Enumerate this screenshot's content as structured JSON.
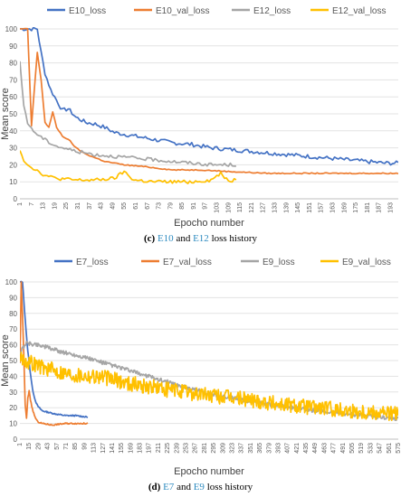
{
  "colors": {
    "E10_loss": "#4472c4",
    "E10_val_loss": "#ed7d31",
    "E12_loss": "#a5a5a5",
    "E12_val_loss": "#ffc000",
    "E7_loss": "#4472c4",
    "E7_val_loss": "#ed7d31",
    "E9_loss": "#a5a5a5",
    "E9_val_loss": "#ffc000",
    "ref": "#2e8bc0"
  },
  "captions": [
    {
      "label": "(c)",
      "ref1": "E10",
      "mid": " and ",
      "ref2": "E12",
      "tail": " loss history"
    },
    {
      "label": "(d)",
      "ref1": "E7",
      "mid": " and ",
      "ref2": "E9",
      "tail": " loss history"
    }
  ],
  "chart_data": [
    {
      "type": "line",
      "xlabel": "Epocho number",
      "ylabel": "Mean score",
      "ylim": [
        0,
        100
      ],
      "yticks": [
        0,
        10,
        20,
        30,
        40,
        50,
        60,
        70,
        80,
        90,
        100
      ],
      "xlim": [
        1,
        197
      ],
      "xtick_start": 1,
      "xtick_step": 6,
      "xtick_end": 193,
      "legend": "top",
      "grid": "horizontal",
      "series": [
        {
          "name": "E10_loss",
          "color": "#4472c4",
          "length": 197,
          "anchors": [
            [
              1,
              100
            ],
            [
              7,
              100
            ],
            [
              10,
              100
            ],
            [
              12,
              86
            ],
            [
              14,
              74
            ],
            [
              17,
              64
            ],
            [
              20,
              58
            ],
            [
              23,
              52
            ],
            [
              26,
              53
            ],
            [
              30,
              48
            ],
            [
              35,
              45
            ],
            [
              40,
              44
            ],
            [
              45,
              42
            ],
            [
              50,
              39
            ],
            [
              55,
              38
            ],
            [
              60,
              37
            ],
            [
              70,
              35
            ],
            [
              80,
              33
            ],
            [
              90,
              32
            ],
            [
              100,
              30
            ],
            [
              110,
              29
            ],
            [
              120,
              28
            ],
            [
              130,
              27
            ],
            [
              140,
              26
            ],
            [
              150,
              25
            ],
            [
              160,
              24
            ],
            [
              170,
              23
            ],
            [
              180,
              22
            ],
            [
              190,
              21
            ],
            [
              197,
              21
            ]
          ],
          "noise": 1.2
        },
        {
          "name": "E10_val_loss",
          "color": "#ed7d31",
          "length": 197,
          "anchors": [
            [
              1,
              100
            ],
            [
              5,
              100
            ],
            [
              7,
              43
            ],
            [
              9,
              72
            ],
            [
              10,
              86
            ],
            [
              12,
              70
            ],
            [
              14,
              45
            ],
            [
              16,
              42
            ],
            [
              18,
              51
            ],
            [
              20,
              42
            ],
            [
              23,
              37
            ],
            [
              27,
              34
            ],
            [
              30,
              30
            ],
            [
              34,
              27
            ],
            [
              38,
              25
            ],
            [
              45,
              22
            ],
            [
              55,
              20
            ],
            [
              65,
              19
            ],
            [
              80,
              17
            ],
            [
              95,
              17
            ],
            [
              110,
              16
            ],
            [
              130,
              15
            ],
            [
              150,
              15
            ],
            [
              175,
              15
            ],
            [
              197,
              15
            ]
          ],
          "noise": 0.3
        },
        {
          "name": "E12_loss",
          "color": "#a5a5a5",
          "length": 113,
          "anchors": [
            [
              1,
              80
            ],
            [
              3,
              55
            ],
            [
              5,
              45
            ],
            [
              7,
              41
            ],
            [
              10,
              38
            ],
            [
              15,
              34
            ],
            [
              20,
              31
            ],
            [
              30,
              28
            ],
            [
              40,
              26
            ],
            [
              50,
              25
            ],
            [
              60,
              24
            ],
            [
              70,
              23
            ],
            [
              80,
              22
            ],
            [
              90,
              21
            ],
            [
              100,
              20
            ],
            [
              113,
              20
            ]
          ],
          "noise": 1.0
        },
        {
          "name": "E12_val_loss",
          "color": "#ffc000",
          "length": 113,
          "anchors": [
            [
              1,
              29
            ],
            [
              3,
              23
            ],
            [
              5,
              20
            ],
            [
              8,
              18
            ],
            [
              12,
              15
            ],
            [
              16,
              13
            ],
            [
              20,
              12
            ],
            [
              30,
              11
            ],
            [
              40,
              11
            ],
            [
              50,
              12
            ],
            [
              55,
              16
            ],
            [
              60,
              11
            ],
            [
              70,
              10
            ],
            [
              80,
              10
            ],
            [
              90,
              10
            ],
            [
              100,
              11
            ],
            [
              105,
              15
            ],
            [
              110,
              10
            ],
            [
              113,
              12
            ]
          ],
          "noise": 1.0
        }
      ]
    },
    {
      "type": "line",
      "xlabel": "Epocho number",
      "ylabel": "Mean score",
      "ylim": [
        0,
        100
      ],
      "yticks": [
        0,
        10,
        20,
        30,
        40,
        50,
        60,
        70,
        80,
        90,
        100
      ],
      "xlim": [
        1,
        575
      ],
      "xtick_start": 1,
      "xtick_step": 14,
      "xtick_end": 575,
      "legend": "top",
      "grid": "horizontal",
      "series": [
        {
          "name": "E7_loss",
          "color": "#4472c4",
          "length": 104,
          "anchors": [
            [
              1,
              100
            ],
            [
              5,
              100
            ],
            [
              8,
              82
            ],
            [
              12,
              60
            ],
            [
              16,
              45
            ],
            [
              20,
              32
            ],
            [
              24,
              25
            ],
            [
              28,
              21
            ],
            [
              35,
              18
            ],
            [
              45,
              17
            ],
            [
              55,
              16
            ],
            [
              70,
              15
            ],
            [
              85,
              15
            ],
            [
              104,
              14
            ]
          ],
          "noise": 0.4
        },
        {
          "name": "E7_val_loss",
          "color": "#ed7d31",
          "length": 104,
          "anchors": [
            [
              1,
              48
            ],
            [
              3,
              100
            ],
            [
              5,
              78
            ],
            [
              7,
              52
            ],
            [
              9,
              22
            ],
            [
              11,
              13
            ],
            [
              13,
              26
            ],
            [
              15,
              31
            ],
            [
              17,
              25
            ],
            [
              20,
              19
            ],
            [
              24,
              14
            ],
            [
              28,
              11
            ],
            [
              35,
              10
            ],
            [
              50,
              9
            ],
            [
              70,
              10
            ],
            [
              104,
              10
            ]
          ],
          "noise": 0.4
        },
        {
          "name": "E9_loss",
          "color": "#a5a5a5",
          "length": 575,
          "anchors": [
            [
              1,
              55
            ],
            [
              10,
              61
            ],
            [
              30,
              60
            ],
            [
              60,
              56
            ],
            [
              100,
              52
            ],
            [
              140,
              47
            ],
            [
              180,
              42
            ],
            [
              220,
              37
            ],
            [
              260,
              32
            ],
            [
              300,
              28
            ],
            [
              350,
              24
            ],
            [
              400,
              21
            ],
            [
              450,
              18
            ],
            [
              500,
              16
            ],
            [
              550,
              14
            ],
            [
              575,
              13
            ]
          ],
          "noise": 1.3
        },
        {
          "name": "E9_val_loss",
          "color": "#ffc000",
          "length": 575,
          "anchors": [
            [
              1,
              52
            ],
            [
              10,
              50
            ],
            [
              40,
              45
            ],
            [
              80,
              41
            ],
            [
              120,
              40
            ],
            [
              160,
              36
            ],
            [
              200,
              33
            ],
            [
              250,
              30
            ],
            [
              300,
              27
            ],
            [
              350,
              25
            ],
            [
              400,
              22
            ],
            [
              450,
              20
            ],
            [
              500,
              18
            ],
            [
              550,
              17
            ],
            [
              575,
              16
            ]
          ],
          "noise": 5.0
        }
      ]
    }
  ]
}
